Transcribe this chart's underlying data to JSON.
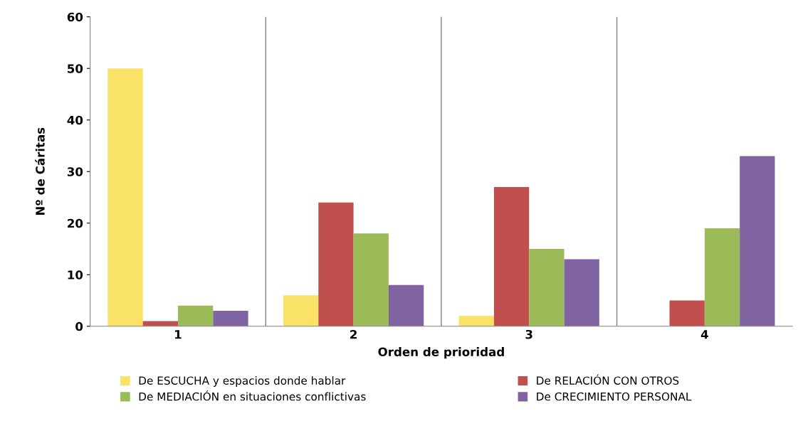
{
  "chart_data": {
    "type": "bar",
    "xlabel": "Orden de prioridad",
    "ylabel": "Nº de Cáritas",
    "categories": [
      "1",
      "2",
      "3",
      "4"
    ],
    "series": [
      {
        "name": "De ESCUCHA y espacios donde hablar",
        "color": "#f9e266",
        "values": [
          50,
          6,
          2,
          0
        ]
      },
      {
        "name": "De RELACIÓN CON OTROS",
        "color": "#c0504d",
        "values": [
          1,
          24,
          27,
          5
        ]
      },
      {
        "name": "De MEDIACIÓN en situaciones conflictivas",
        "color": "#9bbb59",
        "values": [
          4,
          18,
          15,
          19
        ]
      },
      {
        "name": "De CRECIMIENTO PERSONAL",
        "color": "#8064a2",
        "values": [
          3,
          8,
          13,
          33
        ]
      }
    ],
    "ylim": [
      0,
      60
    ],
    "yticks": [
      0,
      10,
      20,
      30,
      40,
      50,
      60
    ],
    "grid": "x",
    "legend": "bottom"
  }
}
